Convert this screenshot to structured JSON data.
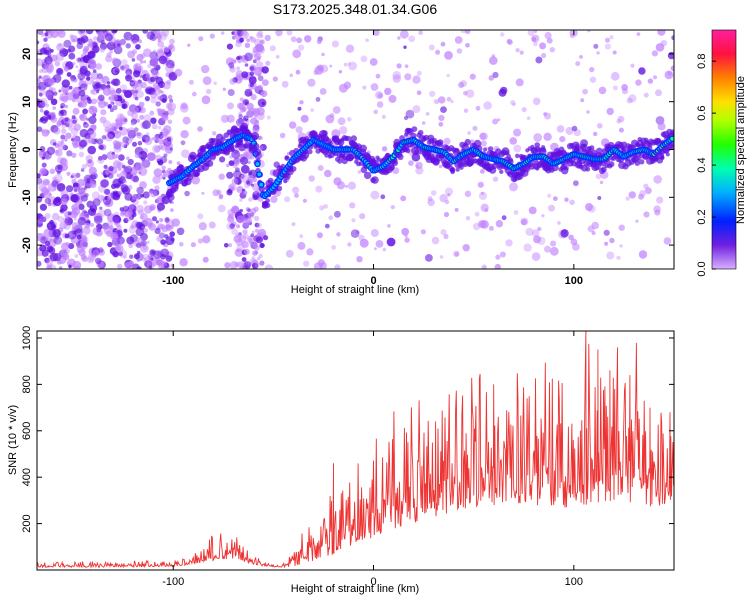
{
  "title": "S173.2025.348.01.34.G06",
  "chart_data": [
    {
      "type": "heatmap",
      "name": "spectrogram",
      "xlabel": "Height of straight line (km)",
      "ylabel": "Frequency (Hz)",
      "xlim": [
        -168,
        150
      ],
      "ylim": [
        -25,
        25
      ],
      "xticks": [
        -100,
        0,
        100
      ],
      "yticks": [
        -20,
        -10,
        0,
        10,
        20
      ],
      "colorbar": {
        "label": "Normalized spectral amplitude",
        "range": [
          0.0,
          0.92
        ],
        "ticks": [
          0.0,
          0.2,
          0.4,
          0.6,
          0.8
        ],
        "colors": [
          "#c080ff",
          "#6010e0",
          "#0030ff",
          "#00c0ff",
          "#00ff80",
          "#40ff00",
          "#c0ff00",
          "#ffe000",
          "#ff8000",
          "#ff1040",
          "#ff20a0"
        ]
      },
      "ridge": {
        "x": [
          -102,
          -95,
          -90,
          -85,
          -80,
          -75,
          -70,
          -65,
          -60,
          -55,
          -50,
          -45,
          -40,
          -35,
          -30,
          -25,
          -20,
          -15,
          -10,
          -5,
          0,
          5,
          10,
          15,
          20,
          25,
          30,
          35,
          40,
          45,
          50,
          55,
          60,
          65,
          70,
          75,
          80,
          85,
          90,
          95,
          100,
          105,
          110,
          115,
          120,
          125,
          130,
          135,
          140,
          145,
          150
        ],
        "y": [
          -7,
          -5.5,
          -3.5,
          -2,
          0,
          0.5,
          2,
          3,
          2,
          -10,
          -8,
          -5,
          -2,
          0,
          2,
          1,
          0,
          0,
          0,
          -2,
          -4.5,
          -3.5,
          -1.5,
          1.5,
          2,
          0.5,
          0,
          -0.5,
          -2.5,
          -1,
          0,
          -1.5,
          -2,
          -2.5,
          -4,
          -3,
          -1.5,
          -1.5,
          -3,
          -2,
          -1,
          -1.5,
          -2,
          -2,
          0,
          -1.5,
          -0.5,
          0,
          -1,
          1,
          2.5
        ]
      }
    },
    {
      "type": "line",
      "name": "snr",
      "xlabel": "Height of straight line (km)",
      "ylabel": "SNR (10 * v/v)",
      "xlim": [
        -168,
        150
      ],
      "ylim": [
        0,
        1030
      ],
      "xticks": [
        -100,
        0,
        100
      ],
      "yticks": [
        200,
        400,
        600,
        800,
        1000
      ],
      "color": "#ee3333",
      "envelope": {
        "x": [
          -168,
          -130,
          -100,
          -90,
          -80,
          -70,
          -65,
          -55,
          -45,
          -40,
          -30,
          -20,
          -10,
          0,
          10,
          20,
          30,
          40,
          50,
          60,
          70,
          80,
          90,
          100,
          110,
          120,
          130,
          140,
          145,
          150
        ],
        "base": [
          12,
          12,
          15,
          25,
          40,
          50,
          35,
          15,
          12,
          15,
          40,
          70,
          110,
          140,
          170,
          200,
          230,
          250,
          270,
          280,
          280,
          270,
          270,
          270,
          290,
          300,
          290,
          270,
          260,
          330
        ],
        "amplitude": [
          18,
          18,
          20,
          40,
          70,
          100,
          60,
          15,
          12,
          60,
          140,
          220,
          280,
          330,
          370,
          400,
          420,
          430,
          440,
          450,
          440,
          420,
          430,
          450,
          500,
          500,
          480,
          420,
          400,
          300
        ]
      },
      "spikes": [
        {
          "x": -20,
          "y": 460
        },
        {
          "x": 31,
          "y": 640
        },
        {
          "x": 60,
          "y": 800
        },
        {
          "x": 106,
          "y": 1030
        },
        {
          "x": 112,
          "y": 950
        },
        {
          "x": 118,
          "y": 860
        },
        {
          "x": 128,
          "y": 840
        },
        {
          "x": 138,
          "y": 700
        },
        {
          "x": 148,
          "y": 680
        }
      ]
    }
  ]
}
